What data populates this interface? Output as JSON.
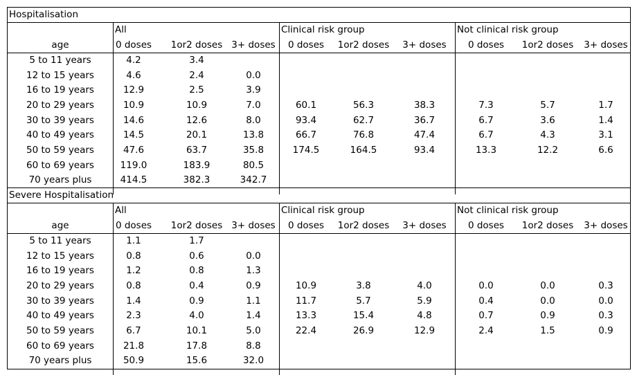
{
  "sections": [
    {
      "title": "Hospitalisation",
      "header": {
        "age": "age",
        "groups": [
          "All",
          "Clinical risk group",
          "Not clinical risk group"
        ],
        "subheaders": [
          "0 doses",
          "1or2 doses",
          "3+ doses",
          "0 doses",
          "1or2 doses",
          "3+ doses",
          "0 doses",
          "1or2 doses",
          "3+ doses"
        ]
      },
      "rows": [
        {
          "label": "5 to 11 years",
          "values": [
            "4.2",
            "3.4",
            null,
            null,
            null,
            null,
            null,
            null,
            null
          ]
        },
        {
          "label": "12 to 15 years",
          "values": [
            "4.6",
            "2.4",
            "0.0",
            null,
            null,
            null,
            null,
            null,
            null
          ]
        },
        {
          "label": "16 to 19 years",
          "values": [
            "12.9",
            "2.5",
            "3.9",
            null,
            null,
            null,
            null,
            null,
            null
          ]
        },
        {
          "label": "20 to 29 years",
          "values": [
            "10.9",
            "10.9",
            "7.0",
            "60.1",
            "56.3",
            "38.3",
            "7.3",
            "5.7",
            "1.7"
          ]
        },
        {
          "label": "30 to 39 years",
          "values": [
            "14.6",
            "12.6",
            "8.0",
            "93.4",
            "62.7",
            "36.7",
            "6.7",
            "3.6",
            "1.4"
          ]
        },
        {
          "label": "40 to 49 years",
          "values": [
            "14.5",
            "20.1",
            "13.8",
            "66.7",
            "76.8",
            "47.4",
            "6.7",
            "4.3",
            "3.1"
          ]
        },
        {
          "label": "50 to 59 years",
          "values": [
            "47.6",
            "63.7",
            "35.8",
            "174.5",
            "164.5",
            "93.4",
            "13.3",
            "12.2",
            "6.6"
          ]
        },
        {
          "label": "60 to 69 years",
          "values": [
            "119.0",
            "183.9",
            "80.5",
            null,
            null,
            null,
            null,
            null,
            null
          ]
        },
        {
          "label": "70 years plus",
          "values": [
            "414.5",
            "382.3",
            "342.7",
            null,
            null,
            null,
            null,
            null,
            null
          ]
        }
      ]
    },
    {
      "title": "Severe Hospitalisation",
      "header": {
        "age": "age",
        "groups": [
          "All",
          "Clinical risk group",
          "Not clinical risk group"
        ],
        "subheaders": [
          "0 doses",
          "1or2 doses",
          "3+ doses",
          "0 doses",
          "1or2 doses",
          "3+ doses",
          "0 doses",
          "1or2 doses",
          "3+ doses"
        ]
      },
      "rows": [
        {
          "label": "5 to 11 years",
          "values": [
            "1.1",
            "1.7",
            null,
            null,
            null,
            null,
            null,
            null,
            null
          ]
        },
        {
          "label": "12 to 15 years",
          "values": [
            "0.8",
            "0.6",
            "0.0",
            null,
            null,
            null,
            null,
            null,
            null
          ]
        },
        {
          "label": "16 to 19 years",
          "values": [
            "1.2",
            "0.8",
            "1.3",
            null,
            null,
            null,
            null,
            null,
            null
          ]
        },
        {
          "label": "20 to 29 years",
          "values": [
            "0.8",
            "0.4",
            "0.9",
            "10.9",
            "3.8",
            "4.0",
            "0.0",
            "0.0",
            "0.3"
          ]
        },
        {
          "label": "30 to 39 years",
          "values": [
            "1.4",
            "0.9",
            "1.1",
            "11.7",
            "5.7",
            "5.9",
            "0.4",
            "0.0",
            "0.0"
          ]
        },
        {
          "label": "40 to 49 years",
          "values": [
            "2.3",
            "4.0",
            "1.4",
            "13.3",
            "15.4",
            "4.8",
            "0.7",
            "0.9",
            "0.3"
          ]
        },
        {
          "label": "50 to 59 years",
          "values": [
            "6.7",
            "10.1",
            "5.0",
            "22.4",
            "26.9",
            "12.9",
            "2.4",
            "1.5",
            "0.9"
          ]
        },
        {
          "label": "60 to 69 years",
          "values": [
            "21.8",
            "17.8",
            "8.8",
            null,
            null,
            null,
            null,
            null,
            null
          ]
        },
        {
          "label": "70 years plus",
          "values": [
            "50.9",
            "15.6",
            "32.0",
            null,
            null,
            null,
            null,
            null,
            null
          ]
        }
      ]
    }
  ]
}
